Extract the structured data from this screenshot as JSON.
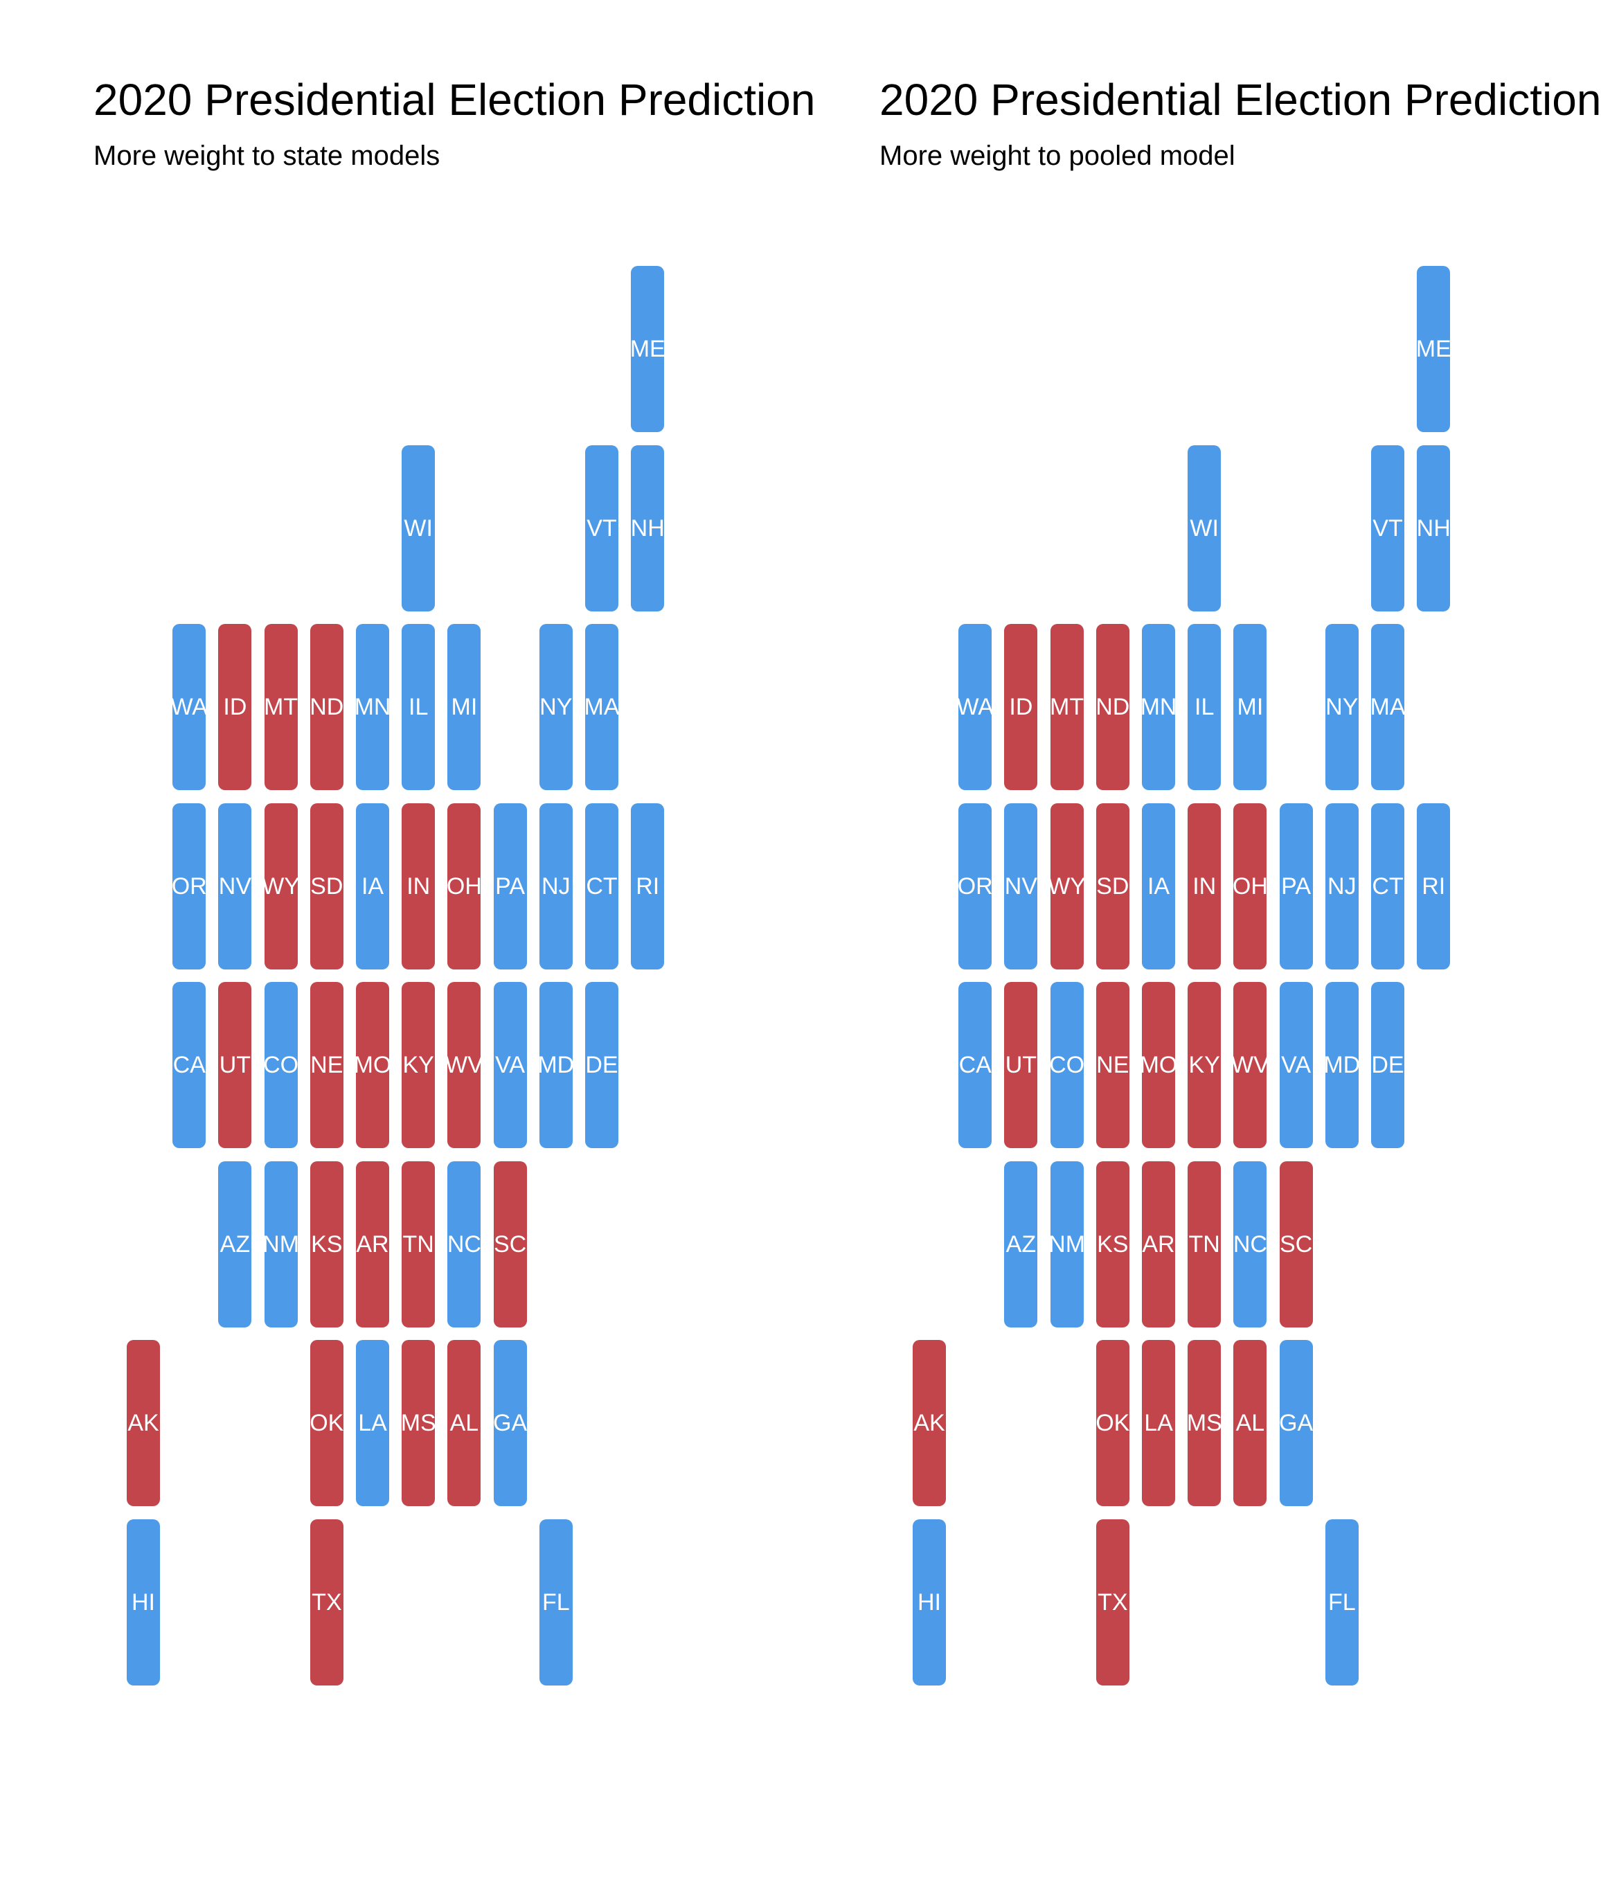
{
  "colors": {
    "dem": "#4d9ae8",
    "rep": "#c1454b"
  },
  "chart_data": [
    {
      "type": "tile-grid-map",
      "title": "2020 Presidential Election Prediction",
      "subtitle": "More weight to state models",
      "tiles": [
        {
          "state": "ME",
          "col": 11,
          "row": 0,
          "party": "dem"
        },
        {
          "state": "WI",
          "col": 6,
          "row": 1,
          "party": "dem"
        },
        {
          "state": "VT",
          "col": 10,
          "row": 1,
          "party": "dem"
        },
        {
          "state": "NH",
          "col": 11,
          "row": 1,
          "party": "dem"
        },
        {
          "state": "WA",
          "col": 1,
          "row": 2,
          "party": "dem"
        },
        {
          "state": "ID",
          "col": 2,
          "row": 2,
          "party": "rep"
        },
        {
          "state": "MT",
          "col": 3,
          "row": 2,
          "party": "rep"
        },
        {
          "state": "ND",
          "col": 4,
          "row": 2,
          "party": "rep"
        },
        {
          "state": "MN",
          "col": 5,
          "row": 2,
          "party": "dem"
        },
        {
          "state": "IL",
          "col": 6,
          "row": 2,
          "party": "dem"
        },
        {
          "state": "MI",
          "col": 7,
          "row": 2,
          "party": "dem"
        },
        {
          "state": "NY",
          "col": 9,
          "row": 2,
          "party": "dem"
        },
        {
          "state": "MA",
          "col": 10,
          "row": 2,
          "party": "dem"
        },
        {
          "state": "OR",
          "col": 1,
          "row": 3,
          "party": "dem"
        },
        {
          "state": "NV",
          "col": 2,
          "row": 3,
          "party": "dem"
        },
        {
          "state": "WY",
          "col": 3,
          "row": 3,
          "party": "rep"
        },
        {
          "state": "SD",
          "col": 4,
          "row": 3,
          "party": "rep"
        },
        {
          "state": "IA",
          "col": 5,
          "row": 3,
          "party": "dem"
        },
        {
          "state": "IN",
          "col": 6,
          "row": 3,
          "party": "rep"
        },
        {
          "state": "OH",
          "col": 7,
          "row": 3,
          "party": "rep"
        },
        {
          "state": "PA",
          "col": 8,
          "row": 3,
          "party": "dem"
        },
        {
          "state": "NJ",
          "col": 9,
          "row": 3,
          "party": "dem"
        },
        {
          "state": "CT",
          "col": 10,
          "row": 3,
          "party": "dem"
        },
        {
          "state": "RI",
          "col": 11,
          "row": 3,
          "party": "dem"
        },
        {
          "state": "CA",
          "col": 1,
          "row": 4,
          "party": "dem"
        },
        {
          "state": "UT",
          "col": 2,
          "row": 4,
          "party": "rep"
        },
        {
          "state": "CO",
          "col": 3,
          "row": 4,
          "party": "dem"
        },
        {
          "state": "NE",
          "col": 4,
          "row": 4,
          "party": "rep"
        },
        {
          "state": "MO",
          "col": 5,
          "row": 4,
          "party": "rep"
        },
        {
          "state": "KY",
          "col": 6,
          "row": 4,
          "party": "rep"
        },
        {
          "state": "WV",
          "col": 7,
          "row": 4,
          "party": "rep"
        },
        {
          "state": "VA",
          "col": 8,
          "row": 4,
          "party": "dem"
        },
        {
          "state": "MD",
          "col": 9,
          "row": 4,
          "party": "dem"
        },
        {
          "state": "DE",
          "col": 10,
          "row": 4,
          "party": "dem"
        },
        {
          "state": "AZ",
          "col": 2,
          "row": 5,
          "party": "dem"
        },
        {
          "state": "NM",
          "col": 3,
          "row": 5,
          "party": "dem"
        },
        {
          "state": "KS",
          "col": 4,
          "row": 5,
          "party": "rep"
        },
        {
          "state": "AR",
          "col": 5,
          "row": 5,
          "party": "rep"
        },
        {
          "state": "TN",
          "col": 6,
          "row": 5,
          "party": "rep"
        },
        {
          "state": "NC",
          "col": 7,
          "row": 5,
          "party": "dem"
        },
        {
          "state": "SC",
          "col": 8,
          "row": 5,
          "party": "rep"
        },
        {
          "state": "AK",
          "col": 0,
          "row": 6,
          "party": "rep"
        },
        {
          "state": "OK",
          "col": 4,
          "row": 6,
          "party": "rep"
        },
        {
          "state": "LA",
          "col": 5,
          "row": 6,
          "party": "dem"
        },
        {
          "state": "MS",
          "col": 6,
          "row": 6,
          "party": "rep"
        },
        {
          "state": "AL",
          "col": 7,
          "row": 6,
          "party": "rep"
        },
        {
          "state": "GA",
          "col": 8,
          "row": 6,
          "party": "dem"
        },
        {
          "state": "HI",
          "col": 0,
          "row": 7,
          "party": "dem"
        },
        {
          "state": "TX",
          "col": 4,
          "row": 7,
          "party": "rep"
        },
        {
          "state": "FL",
          "col": 9,
          "row": 7,
          "party": "dem"
        }
      ]
    },
    {
      "type": "tile-grid-map",
      "title": "2020 Presidential Election Prediction",
      "subtitle": "More weight to pooled model",
      "tiles": [
        {
          "state": "ME",
          "col": 11,
          "row": 0,
          "party": "dem"
        },
        {
          "state": "WI",
          "col": 6,
          "row": 1,
          "party": "dem"
        },
        {
          "state": "VT",
          "col": 10,
          "row": 1,
          "party": "dem"
        },
        {
          "state": "NH",
          "col": 11,
          "row": 1,
          "party": "dem"
        },
        {
          "state": "WA",
          "col": 1,
          "row": 2,
          "party": "dem"
        },
        {
          "state": "ID",
          "col": 2,
          "row": 2,
          "party": "rep"
        },
        {
          "state": "MT",
          "col": 3,
          "row": 2,
          "party": "rep"
        },
        {
          "state": "ND",
          "col": 4,
          "row": 2,
          "party": "rep"
        },
        {
          "state": "MN",
          "col": 5,
          "row": 2,
          "party": "dem"
        },
        {
          "state": "IL",
          "col": 6,
          "row": 2,
          "party": "dem"
        },
        {
          "state": "MI",
          "col": 7,
          "row": 2,
          "party": "dem"
        },
        {
          "state": "NY",
          "col": 9,
          "row": 2,
          "party": "dem"
        },
        {
          "state": "MA",
          "col": 10,
          "row": 2,
          "party": "dem"
        },
        {
          "state": "OR",
          "col": 1,
          "row": 3,
          "party": "dem"
        },
        {
          "state": "NV",
          "col": 2,
          "row": 3,
          "party": "dem"
        },
        {
          "state": "WY",
          "col": 3,
          "row": 3,
          "party": "rep"
        },
        {
          "state": "SD",
          "col": 4,
          "row": 3,
          "party": "rep"
        },
        {
          "state": "IA",
          "col": 5,
          "row": 3,
          "party": "dem"
        },
        {
          "state": "IN",
          "col": 6,
          "row": 3,
          "party": "rep"
        },
        {
          "state": "OH",
          "col": 7,
          "row": 3,
          "party": "rep"
        },
        {
          "state": "PA",
          "col": 8,
          "row": 3,
          "party": "dem"
        },
        {
          "state": "NJ",
          "col": 9,
          "row": 3,
          "party": "dem"
        },
        {
          "state": "CT",
          "col": 10,
          "row": 3,
          "party": "dem"
        },
        {
          "state": "RI",
          "col": 11,
          "row": 3,
          "party": "dem"
        },
        {
          "state": "CA",
          "col": 1,
          "row": 4,
          "party": "dem"
        },
        {
          "state": "UT",
          "col": 2,
          "row": 4,
          "party": "rep"
        },
        {
          "state": "CO",
          "col": 3,
          "row": 4,
          "party": "dem"
        },
        {
          "state": "NE",
          "col": 4,
          "row": 4,
          "party": "rep"
        },
        {
          "state": "MO",
          "col": 5,
          "row": 4,
          "party": "rep"
        },
        {
          "state": "KY",
          "col": 6,
          "row": 4,
          "party": "rep"
        },
        {
          "state": "WV",
          "col": 7,
          "row": 4,
          "party": "rep"
        },
        {
          "state": "VA",
          "col": 8,
          "row": 4,
          "party": "dem"
        },
        {
          "state": "MD",
          "col": 9,
          "row": 4,
          "party": "dem"
        },
        {
          "state": "DE",
          "col": 10,
          "row": 4,
          "party": "dem"
        },
        {
          "state": "AZ",
          "col": 2,
          "row": 5,
          "party": "dem"
        },
        {
          "state": "NM",
          "col": 3,
          "row": 5,
          "party": "dem"
        },
        {
          "state": "KS",
          "col": 4,
          "row": 5,
          "party": "rep"
        },
        {
          "state": "AR",
          "col": 5,
          "row": 5,
          "party": "rep"
        },
        {
          "state": "TN",
          "col": 6,
          "row": 5,
          "party": "rep"
        },
        {
          "state": "NC",
          "col": 7,
          "row": 5,
          "party": "dem"
        },
        {
          "state": "SC",
          "col": 8,
          "row": 5,
          "party": "rep"
        },
        {
          "state": "AK",
          "col": 0,
          "row": 6,
          "party": "rep"
        },
        {
          "state": "OK",
          "col": 4,
          "row": 6,
          "party": "rep"
        },
        {
          "state": "LA",
          "col": 5,
          "row": 6,
          "party": "rep"
        },
        {
          "state": "MS",
          "col": 6,
          "row": 6,
          "party": "rep"
        },
        {
          "state": "AL",
          "col": 7,
          "row": 6,
          "party": "rep"
        },
        {
          "state": "GA",
          "col": 8,
          "row": 6,
          "party": "dem"
        },
        {
          "state": "HI",
          "col": 0,
          "row": 7,
          "party": "dem"
        },
        {
          "state": "TX",
          "col": 4,
          "row": 7,
          "party": "rep"
        },
        {
          "state": "FL",
          "col": 9,
          "row": 7,
          "party": "dem"
        }
      ]
    }
  ]
}
